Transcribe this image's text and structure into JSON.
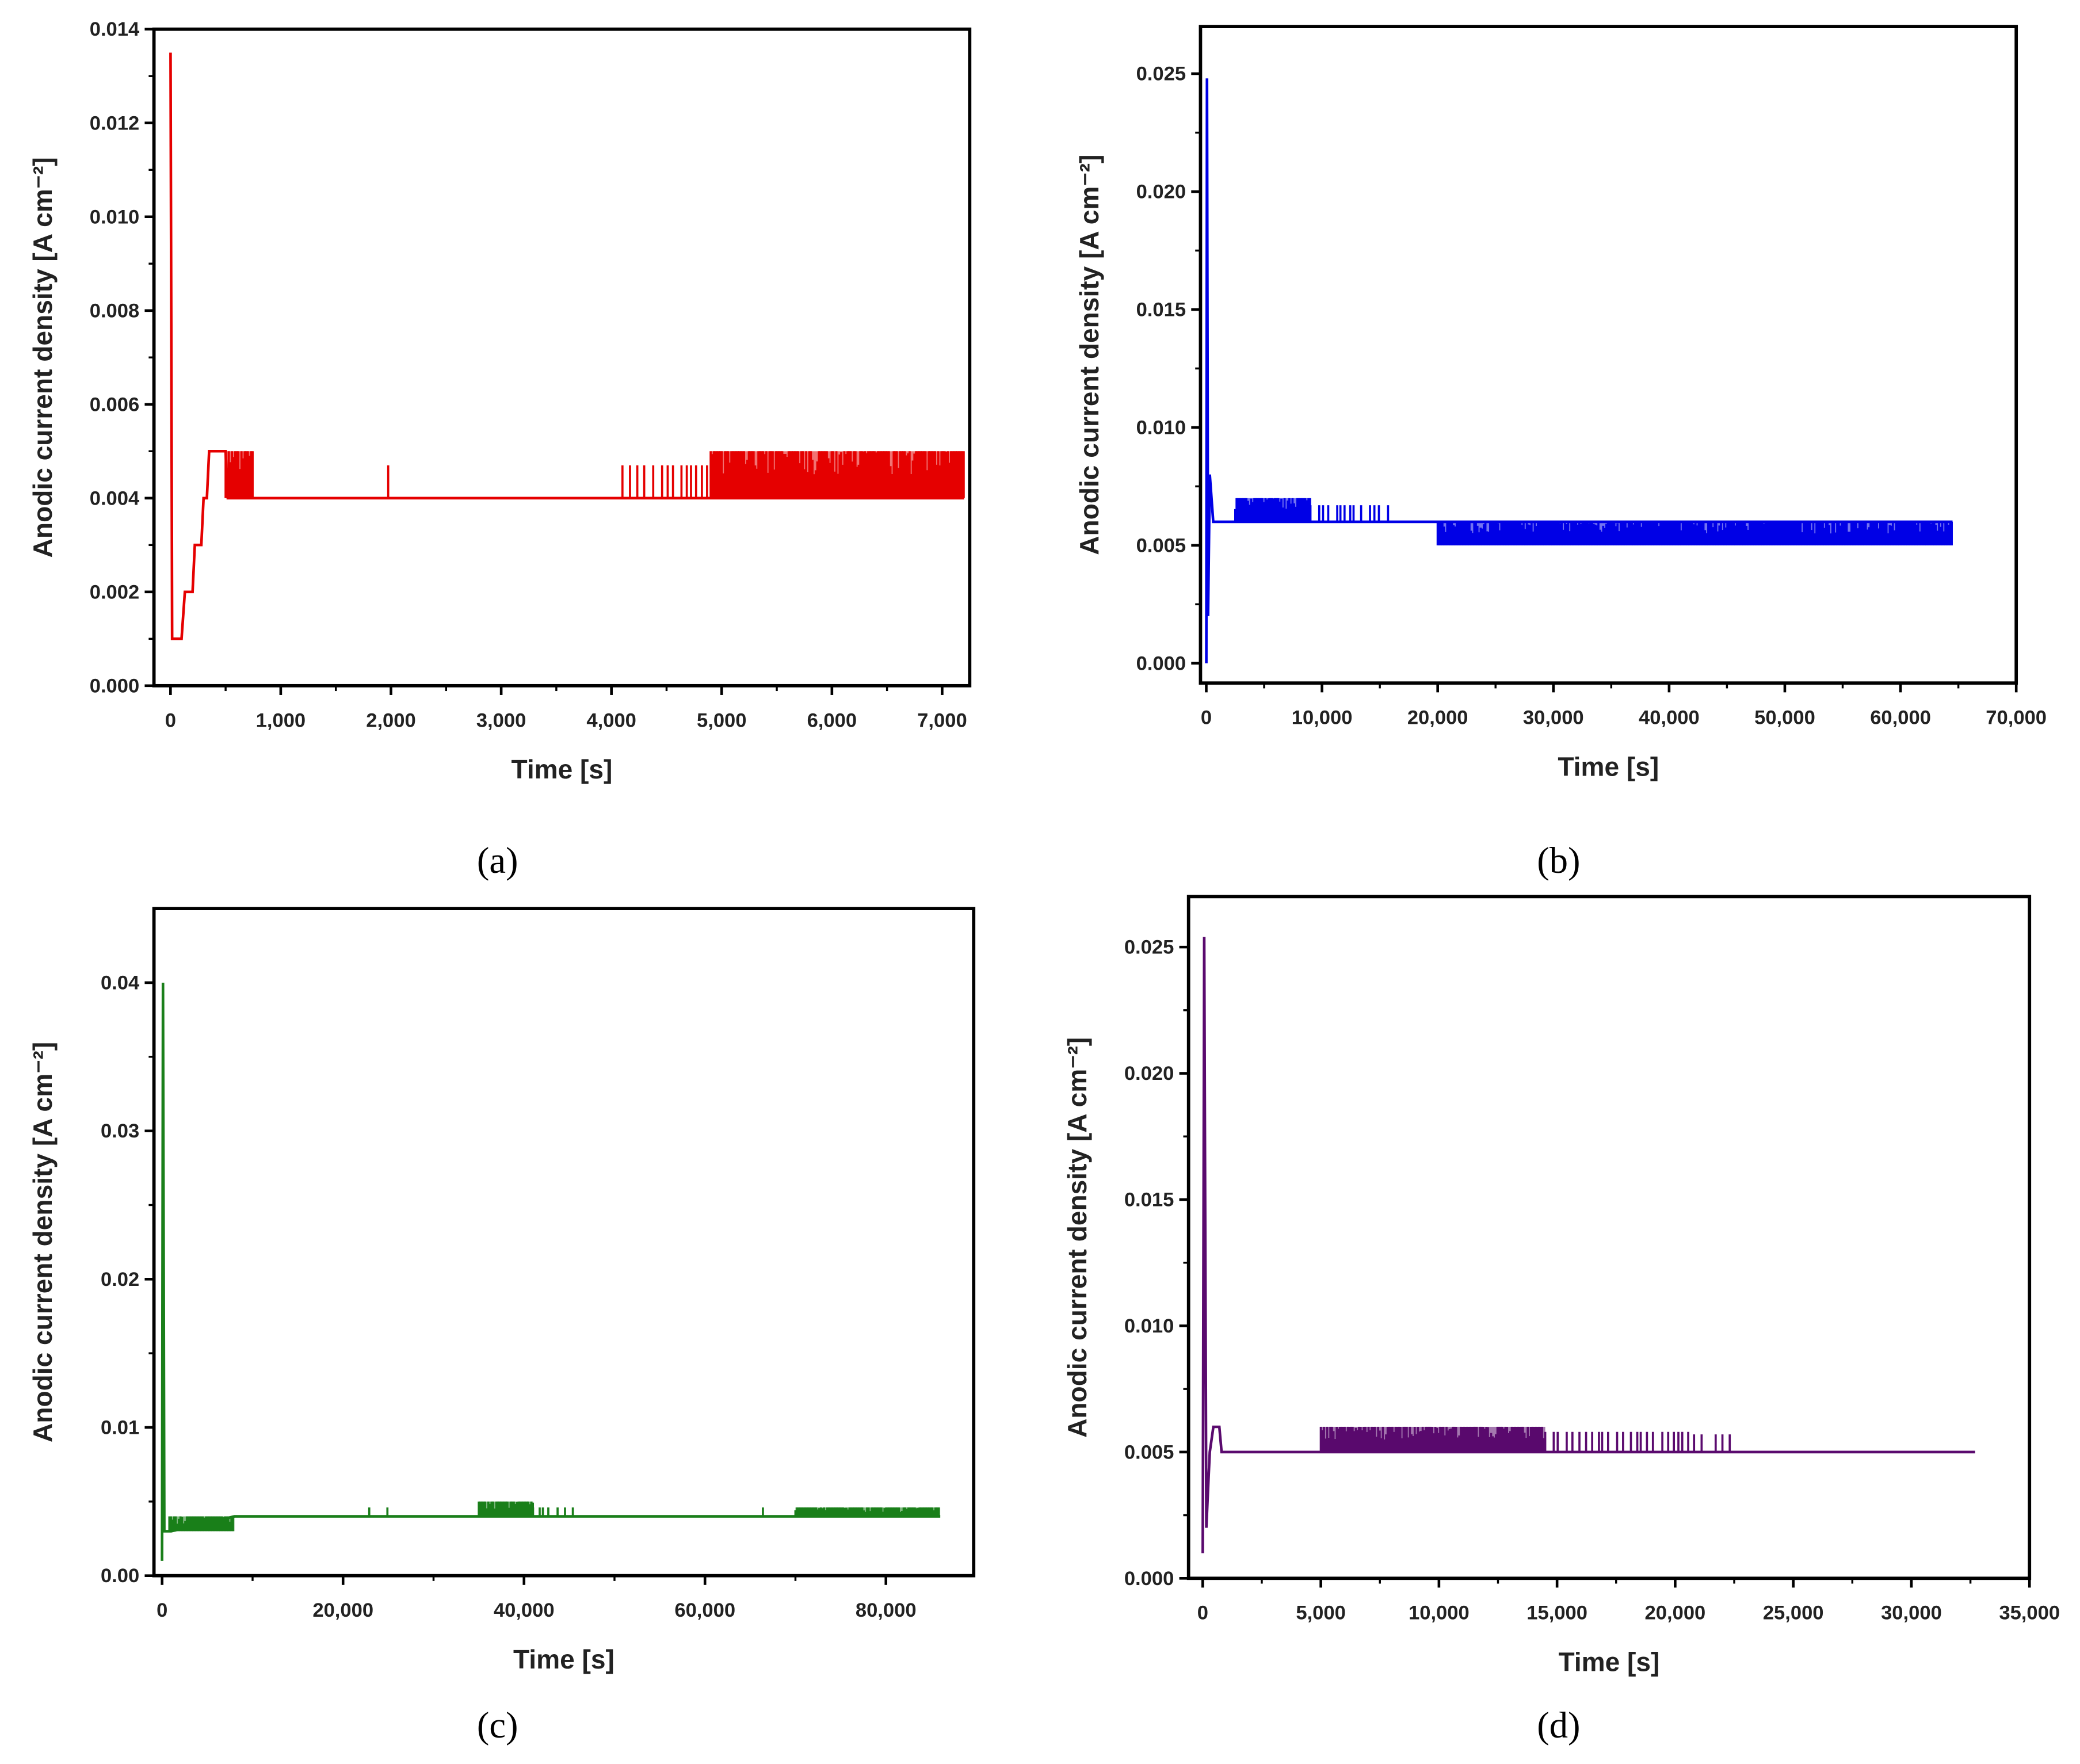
{
  "chart_data": [
    {
      "type": "line",
      "caption": "(a)",
      "xlabel": "Time [s]",
      "ylabel": "Anodic current density [A cm⁻²]",
      "xlim": [
        -150,
        7250
      ],
      "ylim": [
        0,
        0.014
      ],
      "xticks": [
        0,
        1000,
        2000,
        3000,
        4000,
        5000,
        6000,
        7000
      ],
      "xtick_labels": [
        "0",
        "1,000",
        "2,000",
        "3,000",
        "4,000",
        "5,000",
        "6,000",
        "7,000"
      ],
      "yticks": [
        0,
        0.002,
        0.004,
        0.006,
        0.008,
        0.01,
        0.012,
        0.014
      ],
      "ytick_labels": [
        "0.000",
        "0.002",
        "0.004",
        "0.006",
        "0.008",
        "0.010",
        "0.012",
        "0.014"
      ],
      "grid": false,
      "color": "#e50000",
      "series": [
        {
          "x": [
            0,
            15,
            100,
            130,
            200,
            220,
            280,
            300,
            330,
            350,
            500,
            520,
            7200
          ],
          "y": [
            0.0135,
            0.001,
            0.001,
            0.002,
            0.002,
            0.003,
            0.003,
            0.004,
            0.004,
            0.005,
            0.005,
            0.004,
            0.004
          ],
          "fluctuations": [
            {
              "x_from": 500,
              "x_to": 750,
              "low": 0.004,
              "high": 0.005,
              "density": "dense"
            },
            {
              "x_from": 1975,
              "x_to": 1985,
              "low": 0.004,
              "high": 0.0047,
              "density": "single"
            },
            {
              "x_from": 4100,
              "x_to": 4900,
              "low": 0.004,
              "high": 0.0047,
              "density": "sparse"
            },
            {
              "x_from": 4900,
              "x_to": 7200,
              "low": 0.004,
              "high": 0.005,
              "density": "dense"
            }
          ]
        }
      ]
    },
    {
      "type": "line",
      "caption": "(b)",
      "xlabel": "Time [s]",
      "ylabel": "Anodic current density [A cm⁻²]",
      "xlim": [
        -500,
        70000
      ],
      "ylim": [
        -0.00084,
        0.027
      ],
      "xticks": [
        0,
        10000,
        20000,
        30000,
        40000,
        50000,
        60000,
        70000
      ],
      "xtick_labels": [
        "0",
        "10,000",
        "20,000",
        "30,000",
        "40,000",
        "50,000",
        "60,000",
        "70,000"
      ],
      "yticks": [
        0,
        0.005,
        0.01,
        0.015,
        0.02,
        0.025
      ],
      "ytick_labels": [
        "0.000",
        "0.005",
        "0.010",
        "0.015",
        "0.020",
        "0.025"
      ],
      "grid": false,
      "color": "#0000e6",
      "series": [
        {
          "x": [
            0,
            60,
            150,
            300,
            600,
            2500,
            20000,
            64500
          ],
          "y": [
            0.0,
            0.0248,
            0.002,
            0.008,
            0.006,
            0.006,
            0.006,
            0.006
          ],
          "fluctuations": [
            {
              "x_from": 2500,
              "x_to": 9000,
              "low": 0.006,
              "high": 0.007,
              "density": "dense"
            },
            {
              "x_from": 9000,
              "x_to": 16000,
              "low": 0.006,
              "high": 0.0067,
              "density": "sparse"
            },
            {
              "x_from": 20000,
              "x_to": 64500,
              "low": 0.005,
              "high": 0.006,
              "density": "dense"
            }
          ]
        }
      ]
    },
    {
      "type": "line",
      "caption": "(c)",
      "xlabel": "Time [s]",
      "ylabel": "Anodic current density [A cm⁻²]",
      "xlim": [
        -900,
        89700
      ],
      "ylim": [
        0,
        0.045
      ],
      "xticks": [
        0,
        20000,
        40000,
        60000,
        80000
      ],
      "xtick_labels": [
        "0",
        "20,000",
        "40,000",
        "60,000",
        "80,000"
      ],
      "yticks": [
        0,
        0.01,
        0.02,
        0.03,
        0.04
      ],
      "ytick_labels": [
        "0.00",
        "0.01",
        "0.02",
        "0.03",
        "0.04"
      ],
      "grid": false,
      "color": "#1a7f1a",
      "series": [
        {
          "x": [
            0,
            100,
            250,
            1000,
            8000,
            86000
          ],
          "y": [
            0.001,
            0.04,
            0.003,
            0.003,
            0.004,
            0.004
          ],
          "fluctuations": [
            {
              "x_from": 800,
              "x_to": 8000,
              "low": 0.003,
              "high": 0.004,
              "density": "dense"
            },
            {
              "x_from": 22900,
              "x_to": 23100,
              "low": 0.004,
              "high": 0.0046,
              "density": "single"
            },
            {
              "x_from": 24900,
              "x_to": 25100,
              "low": 0.004,
              "high": 0.0046,
              "density": "single"
            },
            {
              "x_from": 35000,
              "x_to": 41000,
              "low": 0.004,
              "high": 0.005,
              "density": "dense"
            },
            {
              "x_from": 41000,
              "x_to": 45500,
              "low": 0.004,
              "high": 0.0046,
              "density": "sparse"
            },
            {
              "x_from": 66400,
              "x_to": 66600,
              "low": 0.004,
              "high": 0.0046,
              "density": "single"
            },
            {
              "x_from": 70000,
              "x_to": 86000,
              "low": 0.004,
              "high": 0.0046,
              "density": "dense"
            }
          ]
        }
      ]
    },
    {
      "type": "line",
      "caption": "(d)",
      "xlabel": "Time [s]",
      "ylabel": "Anodic current density [A cm⁻²]",
      "xlim": [
        -600,
        35000
      ],
      "ylim": [
        0,
        0.027
      ],
      "xticks": [
        0,
        5000,
        10000,
        15000,
        20000,
        25000,
        30000,
        35000
      ],
      "xtick_labels": [
        "0",
        "5,000",
        "10,000",
        "15,000",
        "20,000",
        "25,000",
        "30,000",
        "35,000"
      ],
      "yticks": [
        0,
        0.005,
        0.01,
        0.015,
        0.02,
        0.025
      ],
      "ytick_labels": [
        "0.000",
        "0.005",
        "0.010",
        "0.015",
        "0.020",
        "0.025"
      ],
      "grid": false,
      "color": "#5a0a6e",
      "series": [
        {
          "x": [
            0,
            60,
            150,
            250,
            300,
            450,
            700,
            800,
            32700
          ],
          "y": [
            0.001,
            0.0254,
            0.002,
            0.004,
            0.005,
            0.006,
            0.006,
            0.005,
            0.005
          ],
          "fluctuations": [
            {
              "x_from": 5000,
              "x_to": 14500,
              "low": 0.005,
              "high": 0.006,
              "density": "dense"
            },
            {
              "x_from": 14500,
              "x_to": 20800,
              "low": 0.005,
              "high": 0.0058,
              "density": "sparse"
            },
            {
              "x_from": 20800,
              "x_to": 22800,
              "low": 0.005,
              "high": 0.0057,
              "density": "single"
            }
          ]
        }
      ]
    }
  ]
}
